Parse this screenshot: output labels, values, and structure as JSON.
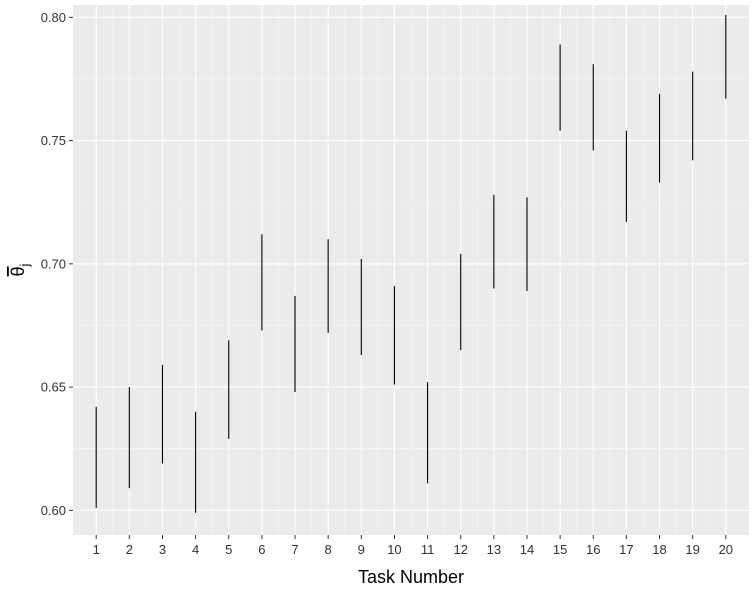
{
  "chart_data": {
    "type": "errorbar",
    "xlabel": "Task Number",
    "ylabel": "θj",
    "ylabel_symbol": "θ",
    "ylabel_subscript": "j",
    "ylim": [
      0.59,
      0.805
    ],
    "y_ticks": [
      "0.60",
      "0.65",
      "0.70",
      "0.75",
      "0.80"
    ],
    "x_ticks": [
      "1",
      "2",
      "3",
      "4",
      "5",
      "6",
      "7",
      "8",
      "9",
      "10",
      "11",
      "12",
      "13",
      "14",
      "15",
      "16",
      "17",
      "18",
      "19",
      "20"
    ],
    "grid": true,
    "intervals": [
      {
        "x": 1,
        "low": 0.601,
        "high": 0.642
      },
      {
        "x": 2,
        "low": 0.609,
        "high": 0.65
      },
      {
        "x": 3,
        "low": 0.619,
        "high": 0.659
      },
      {
        "x": 4,
        "low": 0.599,
        "high": 0.64
      },
      {
        "x": 5,
        "low": 0.629,
        "high": 0.669
      },
      {
        "x": 6,
        "low": 0.673,
        "high": 0.712
      },
      {
        "x": 7,
        "low": 0.648,
        "high": 0.687
      },
      {
        "x": 8,
        "low": 0.672,
        "high": 0.71
      },
      {
        "x": 9,
        "low": 0.663,
        "high": 0.702
      },
      {
        "x": 10,
        "low": 0.651,
        "high": 0.691
      },
      {
        "x": 11,
        "low": 0.611,
        "high": 0.652
      },
      {
        "x": 12,
        "low": 0.665,
        "high": 0.704
      },
      {
        "x": 13,
        "low": 0.69,
        "high": 0.728
      },
      {
        "x": 14,
        "low": 0.689,
        "high": 0.727
      },
      {
        "x": 15,
        "low": 0.754,
        "high": 0.789
      },
      {
        "x": 16,
        "low": 0.746,
        "high": 0.781
      },
      {
        "x": 17,
        "low": 0.717,
        "high": 0.754
      },
      {
        "x": 18,
        "low": 0.733,
        "high": 0.769
      },
      {
        "x": 19,
        "low": 0.742,
        "high": 0.778
      },
      {
        "x": 20,
        "low": 0.767,
        "high": 0.801
      }
    ],
    "colors": {
      "panel_background": "#ebebeb",
      "grid_major": "#ffffff",
      "grid_minor": "#f5f5f5",
      "interval_line": "#000000",
      "tick_mark": "#333333"
    }
  }
}
